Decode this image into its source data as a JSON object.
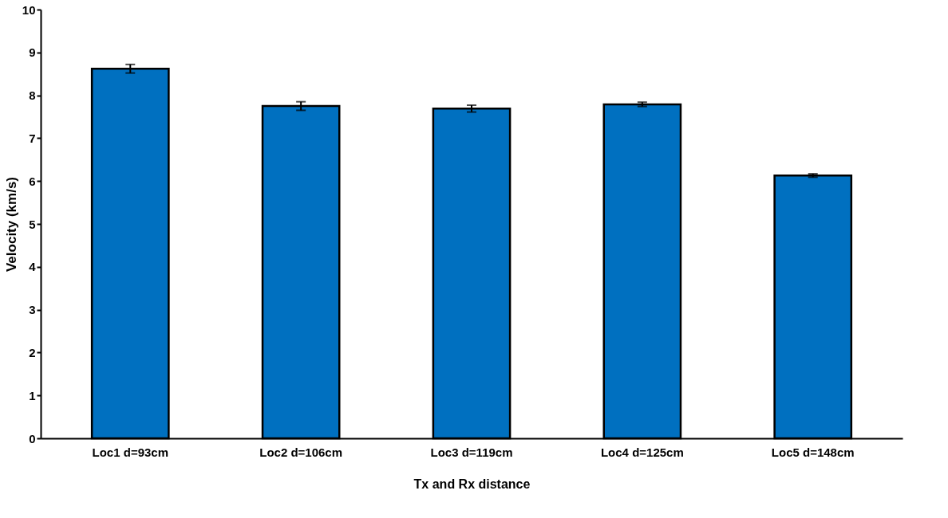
{
  "chart_data": {
    "type": "bar",
    "xlabel": "Tx and Rx distance",
    "ylabel": "Velocity (km/s)",
    "categories": [
      "Loc1 d=93cm",
      "Loc2 d=106cm",
      "Loc3 d=119cm",
      "Loc4 d=125cm",
      "Loc5 d=148cm"
    ],
    "values": [
      8.62,
      7.75,
      7.69,
      7.79,
      6.13
    ],
    "errors": [
      0.1,
      0.1,
      0.08,
      0.05,
      0.04
    ],
    "color": "#0070c0",
    "ylim": [
      0,
      10
    ],
    "yticks": [
      0,
      1,
      2,
      3,
      4,
      5,
      6,
      7,
      8,
      9,
      10
    ],
    "grid": false
  }
}
